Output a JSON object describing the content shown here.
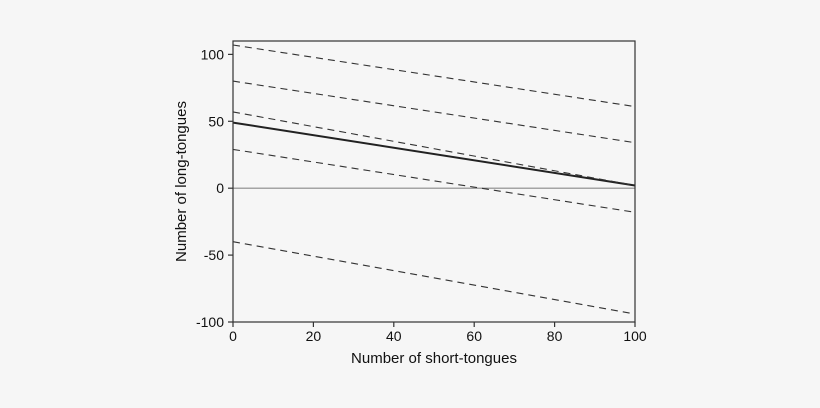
{
  "chart_data": {
    "type": "line",
    "title": "",
    "xlabel": "Number of short-tongues",
    "ylabel": "Number of long-tongues",
    "xlim": [
      0,
      100
    ],
    "ylim": [
      -100,
      110
    ],
    "x_ticks": [
      0,
      20,
      40,
      60,
      80,
      100
    ],
    "y_ticks": [
      -100,
      -50,
      0,
      50,
      100
    ],
    "grid": false,
    "legend": "none",
    "reference_line_y": 0,
    "series": [
      {
        "style": "solid",
        "color": "#222222",
        "x": [
          0,
          100
        ],
        "y": [
          49,
          2
        ]
      },
      {
        "style": "dashed",
        "color": "#333333",
        "x": [
          0,
          100
        ],
        "y": [
          107,
          61
        ]
      },
      {
        "style": "dashed",
        "color": "#333333",
        "x": [
          0,
          100
        ],
        "y": [
          80,
          34
        ]
      },
      {
        "style": "dashed",
        "color": "#333333",
        "x": [
          0,
          100
        ],
        "y": [
          57,
          2
        ]
      },
      {
        "style": "dashed",
        "color": "#333333",
        "x": [
          0,
          100
        ],
        "y": [
          29,
          -18
        ]
      },
      {
        "style": "dashed",
        "color": "#333333",
        "x": [
          0,
          100
        ],
        "y": [
          -40,
          -94
        ]
      }
    ]
  }
}
